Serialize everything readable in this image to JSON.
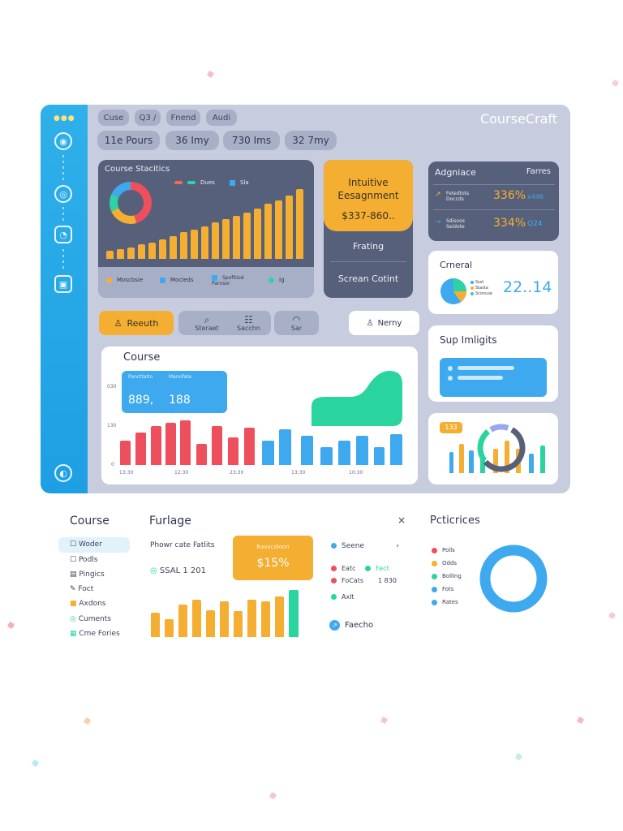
{
  "app": {
    "brand": "CourseCraft"
  },
  "top_pills": [
    "Cuse",
    "Q3 /",
    "Fnend",
    "Audi"
  ],
  "stat_pills": [
    "11e Pours",
    "36 Imy",
    "730 Ims",
    "32 7my"
  ],
  "course_stats": {
    "title": "Course Stacitics",
    "legend": [
      "Dues",
      "Sla"
    ],
    "footer": [
      "Moscbsie",
      "Mocleds",
      "Spofitiod Parnsor",
      "Ig"
    ]
  },
  "assignment": {
    "title": "Intuitive Eesagnment",
    "value": "$337-860..",
    "rows": [
      "Frating",
      "Screan Cotint"
    ]
  },
  "adgniace": {
    "title": "Adgniace",
    "right": "Farres",
    "rows": [
      {
        "label": "Fetedtots",
        "sub": "Doccds",
        "value": "336%",
        "tail": "x446"
      },
      {
        "label": "Sdisoos",
        "sub": "Seidote",
        "value": "334%",
        "tail": "Q24"
      }
    ]
  },
  "general": {
    "title": "Crneral",
    "value": "22..14",
    "legend": [
      "Ssst",
      "Stasta",
      "Sconuse"
    ]
  },
  "toolbar": {
    "primary": "Reeuth",
    "buttons": [
      "Steraet",
      "Sacchn",
      "Sar"
    ],
    "search": "Nerny"
  },
  "course_chart": {
    "title": "Course",
    "info": {
      "a_label": "Pancttatin",
      "b_label": "Manofate",
      "a_value": "889,",
      "b_value": "188"
    },
    "y_ticks": [
      "030",
      "130",
      "0"
    ],
    "x_ticks": [
      "13:30",
      "12:30",
      "23:30",
      "13:30",
      "10:30"
    ]
  },
  "sup": {
    "title": "Sup Imligits"
  },
  "mini_chart": {
    "badge": "133"
  },
  "bottom": {
    "course_title": "Course",
    "nav": [
      "Woder",
      "Podls",
      "Pingics",
      "Foct",
      "Axdons",
      "Cuments",
      "Cme Fories"
    ],
    "furlage_title": "Furlage",
    "close": "×",
    "furlage_sub": "Phowr cate Fatlits",
    "furlage_stat": "SSAL 1 201",
    "badge_label": "Ravacoloon",
    "badge_value": "$15%",
    "right_list": [
      "Seene",
      "Eatc",
      "Fect",
      "FoCats",
      "1 830",
      "Axlt"
    ],
    "chevron": "›",
    "link": "Faecho",
    "preferences_title": "Pcticrices",
    "pref_legend": [
      "Polls",
      "Odds",
      "Bolling",
      "Fots",
      "Rates"
    ]
  },
  "colors": {
    "sidebar": "#1e9fe3",
    "orange": "#f4ae32",
    "blue": "#3ea9ee",
    "red": "#ee4f5c",
    "green": "#29d49e",
    "dark_panel": "#56607a"
  }
}
